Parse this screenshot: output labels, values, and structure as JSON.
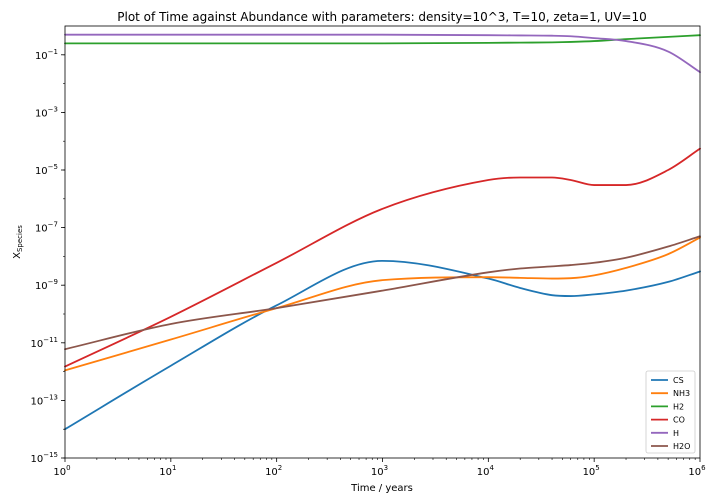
{
  "chart_data": {
    "type": "line",
    "title": "Plot of Time against Abundance with parameters: density=10^3, T=10, zeta=1, UV=10",
    "xlabel": "Time / years",
    "ylabel_base": "X",
    "ylabel_sub": "Species",
    "x_scale": "log",
    "y_scale": "log",
    "xlim": [
      1,
      1000000
    ],
    "ylim": [
      1e-15,
      1
    ],
    "grid": false,
    "legend_position": "lower-right",
    "x_ticks": [
      {
        "exp": 0,
        "base": "10",
        "sup": "0"
      },
      {
        "exp": 1,
        "base": "10",
        "sup": "1"
      },
      {
        "exp": 2,
        "base": "10",
        "sup": "2"
      },
      {
        "exp": 3,
        "base": "10",
        "sup": "3"
      },
      {
        "exp": 4,
        "base": "10",
        "sup": "4"
      },
      {
        "exp": 5,
        "base": "10",
        "sup": "5"
      },
      {
        "exp": 6,
        "base": "10",
        "sup": "6"
      }
    ],
    "y_ticks": [
      {
        "exp": -1,
        "base": "10",
        "sup": "−1"
      },
      {
        "exp": -3,
        "base": "10",
        "sup": "−3"
      },
      {
        "exp": -5,
        "base": "10",
        "sup": "−5"
      },
      {
        "exp": -7,
        "base": "10",
        "sup": "−7"
      },
      {
        "exp": -9,
        "base": "10",
        "sup": "−9"
      },
      {
        "exp": -11,
        "base": "10",
        "sup": "−11"
      },
      {
        "exp": -13,
        "base": "10",
        "sup": "−13"
      },
      {
        "exp": -15,
        "base": "10",
        "sup": "−15"
      }
    ],
    "x": [
      1,
      10,
      100,
      1000,
      10000,
      20000,
      40000,
      60000,
      100000,
      200000,
      500000,
      1000000
    ],
    "series": [
      {
        "name": "CS",
        "color": "#1f77b4",
        "values": [
          1e-14,
          1.6e-12,
          2e-10,
          7e-09,
          1.7e-09,
          8e-10,
          4.5e-10,
          4.2e-10,
          4.8e-10,
          6.5e-10,
          1.3e-09,
          3e-09
        ]
      },
      {
        "name": "NH3",
        "color": "#ff7f0e",
        "values": [
          1.1e-12,
          1.3e-11,
          1.6e-10,
          1.5e-09,
          1.9e-09,
          1.8e-09,
          1.7e-09,
          1.75e-09,
          2.2e-09,
          4e-09,
          1.2e-08,
          4.5e-08
        ]
      },
      {
        "name": "H2",
        "color": "#2ca02c",
        "values": [
          0.25,
          0.25,
          0.25,
          0.25,
          0.26,
          0.265,
          0.27,
          0.28,
          0.3,
          0.35,
          0.42,
          0.48
        ]
      },
      {
        "name": "CO",
        "color": "#d62728",
        "values": [
          1.5e-12,
          8e-11,
          6e-09,
          4.5e-07,
          4.5e-06,
          5.5e-06,
          5.5e-06,
          4.5e-06,
          3e-06,
          3e-06,
          1e-05,
          5.5e-05
        ]
      },
      {
        "name": "H",
        "color": "#9467bd",
        "values": [
          0.5,
          0.5,
          0.5,
          0.5,
          0.48,
          0.47,
          0.46,
          0.44,
          0.38,
          0.3,
          0.13,
          0.025
        ]
      },
      {
        "name": "H2O",
        "color": "#8c564b",
        "values": [
          6e-12,
          4.5e-11,
          1.6e-10,
          6.5e-10,
          2.8e-09,
          3.8e-09,
          4.5e-09,
          5e-09,
          6e-09,
          9e-09,
          2.2e-08,
          5e-08
        ]
      }
    ]
  }
}
